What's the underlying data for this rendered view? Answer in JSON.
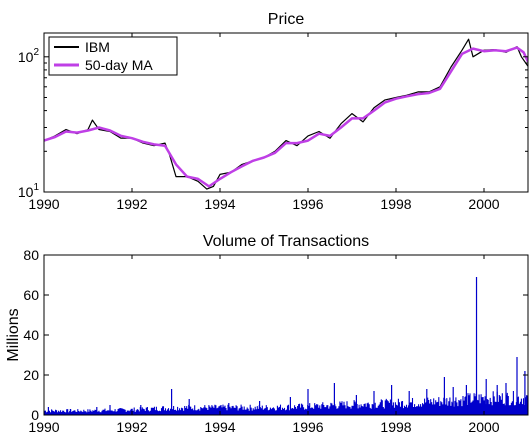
{
  "chart_data": [
    {
      "type": "line",
      "title": "Price",
      "xlabel": "",
      "ylabel": "",
      "yscale": "log",
      "xlim": [
        1990,
        2001
      ],
      "ylim": [
        10,
        150
      ],
      "x_ticks": [
        1990,
        1992,
        1994,
        1996,
        1998,
        2000
      ],
      "x_tick_labels": [
        "1990",
        "1992",
        "1994",
        "1996",
        "1998",
        "2000"
      ],
      "y_ticks": [
        10,
        100
      ],
      "y_tick_labels": [
        {
          "base": "10",
          "exp": "1"
        },
        {
          "base": "10",
          "exp": "2"
        }
      ],
      "grid": false,
      "legend_position": "top-left",
      "series": [
        {
          "name": "IBM",
          "color": "#000000",
          "x": [
            1990.0,
            1990.25,
            1990.5,
            1990.75,
            1991.0,
            1991.1,
            1991.25,
            1991.5,
            1991.75,
            1992.0,
            1992.25,
            1992.5,
            1992.75,
            1992.85,
            1993.0,
            1993.25,
            1993.5,
            1993.7,
            1993.85,
            1994.0,
            1994.25,
            1994.5,
            1994.75,
            1995.0,
            1995.25,
            1995.5,
            1995.75,
            1996.0,
            1996.25,
            1996.5,
            1996.75,
            1997.0,
            1997.25,
            1997.5,
            1997.75,
            1998.0,
            1998.25,
            1998.5,
            1998.75,
            1999.0,
            1999.25,
            1999.5,
            1999.65,
            1999.75,
            2000.0,
            2000.25,
            2000.5,
            2000.75,
            2000.85,
            2001.0
          ],
          "values": [
            24,
            26,
            29,
            27,
            29,
            34,
            29,
            28,
            25,
            25,
            23,
            22,
            23,
            19,
            13,
            13,
            12,
            10.5,
            11,
            13.5,
            14,
            16,
            17,
            18,
            20,
            24,
            22,
            26,
            28,
            25,
            32,
            38,
            33,
            42,
            48,
            50,
            52,
            55,
            55,
            60,
            84,
            112,
            135,
            100,
            112,
            113,
            108,
            119,
            100,
            85
          ]
        },
        {
          "name": "50-day MA",
          "color": "#bf3fe6",
          "x": [
            1990.0,
            1990.25,
            1990.5,
            1990.75,
            1991.0,
            1991.25,
            1991.5,
            1991.75,
            1992.0,
            1992.25,
            1992.5,
            1992.75,
            1993.0,
            1993.25,
            1993.5,
            1993.75,
            1994.0,
            1994.25,
            1994.5,
            1994.75,
            1995.0,
            1995.25,
            1995.5,
            1995.75,
            1996.0,
            1996.25,
            1996.5,
            1996.75,
            1997.0,
            1997.25,
            1997.5,
            1997.75,
            1998.0,
            1998.25,
            1998.5,
            1998.75,
            1999.0,
            1999.25,
            1999.5,
            1999.75,
            2000.0,
            2000.25,
            2000.5,
            2000.75,
            2000.9,
            2001.0
          ],
          "values": [
            24,
            25.5,
            28,
            27.5,
            28.5,
            30,
            28.5,
            26,
            25,
            23.5,
            22.5,
            22,
            16,
            13,
            12.5,
            11,
            12.5,
            14,
            15.5,
            17,
            18,
            19.5,
            23,
            23,
            24,
            27,
            26,
            30,
            35,
            35,
            40,
            46,
            49,
            51,
            53,
            54,
            58,
            78,
            105,
            115,
            110,
            112,
            110,
            117,
            108,
            92
          ]
        }
      ]
    },
    {
      "type": "bar",
      "title": "Volume of Transactions",
      "xlabel": "",
      "ylabel": "Millions",
      "xlim": [
        1990,
        2001
      ],
      "ylim": [
        0,
        80
      ],
      "x_ticks": [
        1990,
        1992,
        1994,
        1996,
        1998,
        2000
      ],
      "x_tick_labels": [
        "1990",
        "1992",
        "1994",
        "1996",
        "1998",
        "2000"
      ],
      "y_ticks": [
        0,
        20,
        40,
        60,
        80
      ],
      "y_tick_labels": [
        "0",
        "20",
        "40",
        "60",
        "80"
      ],
      "grid": false,
      "color": "#0000cc",
      "spikes": {
        "x": [
          1990.1,
          1990.6,
          1991.2,
          1991.5,
          1992.2,
          1992.9,
          1993.3,
          1994.2,
          1994.9,
          1995.6,
          1996.0,
          1996.6,
          1997.1,
          1997.5,
          1997.9,
          1998.3,
          1998.7,
          1999.1,
          1999.3,
          1999.6,
          1999.83,
          2000.05,
          2000.3,
          2000.5,
          2000.75,
          2000.93
        ],
        "values": [
          4,
          3,
          4,
          5,
          5,
          13,
          8,
          6,
          7,
          9,
          13,
          16,
          10,
          12,
          15,
          12,
          13,
          19,
          14,
          15,
          69,
          18,
          15,
          16,
          29,
          22
        ]
      },
      "baseline": {
        "x": [
          1990,
          1991,
          1992,
          1993,
          1994,
          1995,
          1996,
          1997,
          1998,
          1999,
          2000,
          2001
        ],
        "values": [
          2,
          2,
          2.5,
          3.5,
          3.5,
          3.5,
          4,
          5,
          5.5,
          6.5,
          8,
          8
        ]
      }
    }
  ]
}
